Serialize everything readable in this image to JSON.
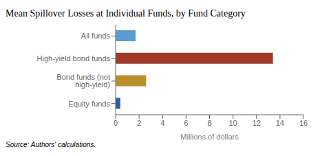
{
  "chart_data": {
    "type": "bar",
    "orientation": "horizontal",
    "title": "Mean Spillover Losses at Individual Funds, by Fund Category",
    "categories": [
      "All funds",
      "High-yield bond funds",
      "Bond funds (not high-yield)",
      "Equity funds"
    ],
    "values": [
      1.7,
      13.4,
      2.6,
      0.4
    ],
    "colors": [
      "#5b9bd5",
      "#a0392a",
      "#b8902a",
      "#2e5fa3"
    ],
    "xlabel": "Millions of dollars",
    "xlim": [
      0,
      16
    ],
    "xticks": [
      0,
      2,
      4,
      6,
      8,
      10,
      12,
      14,
      16
    ],
    "grid": false,
    "annotations": [
      "Source: Authors' calculations."
    ]
  }
}
